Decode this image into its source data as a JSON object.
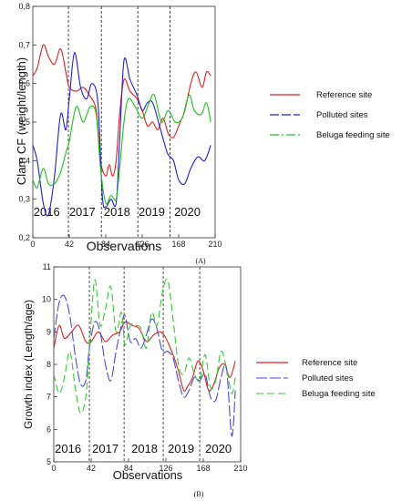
{
  "chart_data": [
    {
      "type": "line",
      "panel_label": "(A)",
      "xlabel": "Observations",
      "ylabel": "Clam CF (weight/length)",
      "xlim": [
        0,
        210
      ],
      "ylim": [
        0.2,
        0.8
      ],
      "xticks": [
        0,
        42,
        84,
        126,
        168,
        210
      ],
      "yticks": [
        0.2,
        0.3,
        0.4,
        0.5,
        0.6,
        0.7,
        0.8
      ],
      "ytick_labels": [
        "0,2",
        "0,3",
        "0,4",
        "0,5",
        "0,6",
        "0,7",
        "0,8"
      ],
      "year_dividers": [
        41,
        79,
        121,
        158
      ],
      "years": [
        {
          "label": "2016",
          "x": 16
        },
        {
          "label": "2017",
          "x": 57
        },
        {
          "label": "2018",
          "x": 97
        },
        {
          "label": "2019",
          "x": 137
        },
        {
          "label": "2020",
          "x": 178
        }
      ],
      "grid": false,
      "legend_position": "right",
      "series": [
        {
          "name": "Reference site",
          "color": "#e02020",
          "dash": "solid",
          "x": [
            0,
            5,
            12,
            18,
            25,
            32,
            38,
            42,
            50,
            58,
            65,
            73,
            78,
            84,
            88,
            92,
            96,
            100,
            105,
            112,
            120,
            126,
            132,
            138,
            144,
            150,
            156,
            162,
            168,
            175,
            182,
            188,
            195,
            200,
            205
          ],
          "y": [
            0.62,
            0.64,
            0.7,
            0.67,
            0.65,
            0.69,
            0.63,
            0.59,
            0.58,
            0.59,
            0.57,
            0.53,
            0.4,
            0.36,
            0.39,
            0.36,
            0.4,
            0.52,
            0.61,
            0.58,
            0.56,
            0.53,
            0.49,
            0.5,
            0.48,
            0.51,
            0.47,
            0.46,
            0.49,
            0.53,
            0.6,
            0.63,
            0.59,
            0.63,
            0.62
          ]
        },
        {
          "name": "Polluted sites",
          "color": "#2020d0",
          "dash": "solid",
          "x": [
            0,
            5,
            12,
            18,
            25,
            32,
            38,
            42,
            48,
            55,
            62,
            68,
            75,
            80,
            84,
            90,
            96,
            100,
            105,
            112,
            120,
            126,
            132,
            138,
            146,
            155,
            162,
            168,
            175,
            182,
            190,
            198,
            205
          ],
          "y": [
            0.44,
            0.4,
            0.29,
            0.26,
            0.36,
            0.52,
            0.48,
            0.56,
            0.68,
            0.59,
            0.56,
            0.6,
            0.55,
            0.31,
            0.28,
            0.3,
            0.29,
            0.45,
            0.66,
            0.61,
            0.57,
            0.53,
            0.55,
            0.55,
            0.49,
            0.42,
            0.4,
            0.35,
            0.34,
            0.38,
            0.41,
            0.4,
            0.44
          ]
        },
        {
          "name": "Beluga feeding site",
          "color": "#20c020",
          "dash": "solid",
          "x": [
            0,
            5,
            12,
            18,
            25,
            32,
            38,
            42,
            50,
            58,
            66,
            73,
            78,
            84,
            90,
            96,
            100,
            105,
            110,
            118,
            126,
            134,
            140,
            148,
            156,
            164,
            172,
            180,
            186,
            194,
            200,
            205
          ],
          "y": [
            0.35,
            0.33,
            0.38,
            0.34,
            0.34,
            0.37,
            0.42,
            0.45,
            0.54,
            0.5,
            0.54,
            0.52,
            0.38,
            0.29,
            0.31,
            0.3,
            0.38,
            0.5,
            0.56,
            0.54,
            0.51,
            0.55,
            0.57,
            0.5,
            0.53,
            0.5,
            0.51,
            0.57,
            0.53,
            0.52,
            0.55,
            0.5
          ]
        }
      ]
    },
    {
      "type": "line",
      "panel_label": "(B)",
      "xlabel": "Observations",
      "ylabel": "Growth index (Length/age)",
      "xlim": [
        0,
        210
      ],
      "ylim": [
        5,
        11
      ],
      "xticks": [
        0,
        42,
        84,
        126,
        168,
        210
      ],
      "yticks": [
        5,
        6,
        7,
        8,
        9,
        10,
        11
      ],
      "ytick_labels": [
        "5",
        "6",
        "7",
        "8",
        "9",
        "10",
        "11"
      ],
      "year_dividers": [
        40,
        79,
        123,
        164
      ],
      "years": [
        {
          "label": "2016",
          "x": 16
        },
        {
          "label": "2017",
          "x": 58
        },
        {
          "label": "2018",
          "x": 102
        },
        {
          "label": "2019",
          "x": 143
        },
        {
          "label": "2020",
          "x": 185
        }
      ],
      "grid": false,
      "legend_position": "right",
      "series": [
        {
          "name": "Reference site",
          "color": "#e02020",
          "dash": "solid",
          "x": [
            0,
            6,
            12,
            20,
            28,
            36,
            42,
            50,
            58,
            66,
            74,
            80,
            88,
            96,
            104,
            112,
            120,
            126,
            134,
            140,
            146,
            150,
            156,
            162,
            168,
            174,
            180,
            186,
            192,
            198,
            204
          ],
          "y": [
            8.5,
            9.2,
            8.8,
            9.0,
            9.2,
            8.7,
            8.7,
            9.0,
            8.7,
            8.9,
            9.0,
            9.3,
            9.2,
            9.1,
            8.7,
            8.9,
            9.0,
            8.8,
            8.3,
            7.8,
            7.2,
            7.3,
            7.6,
            8.1,
            7.8,
            7.2,
            7.4,
            7.9,
            8.0,
            7.6,
            8.1
          ]
        },
        {
          "name": "Polluted sites",
          "color": "#4a4adc",
          "dash": "long-dash",
          "x": [
            0,
            6,
            12,
            18,
            24,
            30,
            36,
            40,
            46,
            52,
            58,
            64,
            70,
            76,
            80,
            86,
            92,
            98,
            104,
            110,
            116,
            122,
            128,
            134,
            140,
            146,
            152,
            158,
            164,
            170,
            176,
            182,
            188,
            194,
            200,
            204
          ],
          "y": [
            8.8,
            9.9,
            10.1,
            9.5,
            8.3,
            7.4,
            7.5,
            8.5,
            9.3,
            9.0,
            8.0,
            7.5,
            8.4,
            9.2,
            9.5,
            8.7,
            8.8,
            8.5,
            8.9,
            9.4,
            9.1,
            8.4,
            8.4,
            8.2,
            7.5,
            7.0,
            7.2,
            7.6,
            7.5,
            7.7,
            7.0,
            6.9,
            7.6,
            7.9,
            5.8,
            7.2
          ]
        },
        {
          "name": "Beluga feeding site",
          "color": "#33cc33",
          "dash": "dash",
          "x": [
            0,
            6,
            12,
            18,
            24,
            30,
            36,
            40,
            46,
            52,
            58,
            64,
            70,
            76,
            80,
            86,
            92,
            98,
            104,
            110,
            116,
            122,
            128,
            134,
            140,
            146,
            152,
            158,
            164,
            170,
            176,
            182,
            188,
            194,
            200,
            204
          ],
          "y": [
            7.7,
            7.1,
            7.6,
            8.4,
            7.3,
            6.5,
            7.0,
            8.5,
            10.6,
            9.2,
            9.7,
            10.4,
            9.0,
            9.6,
            8.6,
            9.2,
            9.2,
            9.1,
            8.5,
            9.6,
            9.2,
            10.2,
            10.6,
            9.4,
            8.0,
            7.7,
            8.2,
            7.7,
            7.5,
            8.3,
            7.3,
            7.5,
            8.4,
            7.9,
            7.1,
            7.6
          ]
        }
      ]
    }
  ]
}
